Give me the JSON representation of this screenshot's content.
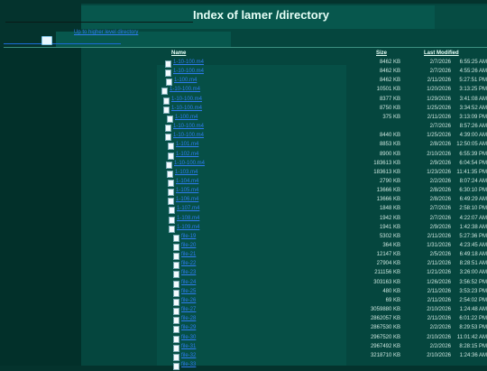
{
  "page": {
    "title": "Index of lamer /directory"
  },
  "parent": {
    "label": "Up to higher level directory"
  },
  "table": {
    "headers": {
      "name": "Name",
      "size": "Size",
      "modified": "Last Modified"
    },
    "rows": [
      {
        "name": "1-10-100.m4",
        "size": "8462 KB",
        "date": "2/7/2026",
        "time": "6:55:25 AM"
      },
      {
        "name": "1-10-100.m4",
        "size": "8462 KB",
        "date": "2/7/2026",
        "time": "4:55:26 AM"
      },
      {
        "name": "1-100.m4",
        "size": "8462 KB",
        "date": "2/11/2026",
        "time": "5:27:51 PM"
      },
      {
        "name": "1-10-100.m4",
        "size": "10501 KB",
        "date": "1/20/2026",
        "time": "3:13:25 PM"
      },
      {
        "name": "1-10-100.m4",
        "size": "8377 KB",
        "date": "1/29/2026",
        "time": "3:41:08 AM"
      },
      {
        "name": "1-10-100.m4",
        "size": "8750 KB",
        "date": "1/25/2026",
        "time": "3:34:52 AM"
      },
      {
        "name": "1-100.m4",
        "size": "375 KB",
        "date": "2/11/2026",
        "time": "3:13:09 PM"
      },
      {
        "name": "1-10-100.m4",
        "size": "",
        "date": "2/7/2026",
        "time": "8:57:26 AM"
      },
      {
        "name": "1-10-100.m4",
        "size": "8440 KB",
        "date": "1/25/2026",
        "time": "4:39:00 AM"
      },
      {
        "name": "1-101.m4",
        "size": "8853 KB",
        "date": "2/8/2026",
        "time": "12:50:05 AM"
      },
      {
        "name": "1-102.m4",
        "size": "8900 KB",
        "date": "2/10/2026",
        "time": "6:55:39 PM"
      },
      {
        "name": "1-10-100.m4",
        "size": "183613 KB",
        "date": "2/9/2026",
        "time": "6:04:54 PM"
      },
      {
        "name": "1-103.m4",
        "size": "183613 KB",
        "date": "1/23/2026",
        "time": "11:41:35 PM"
      },
      {
        "name": "1-104.m4",
        "size": "2790 KB",
        "date": "2/2/2026",
        "time": "8:07:24 AM"
      },
      {
        "name": "1-105.m4",
        "size": "13666 KB",
        "date": "2/8/2026",
        "time": "6:30:10 PM"
      },
      {
        "name": "1-106.m4",
        "size": "13666 KB",
        "date": "2/8/2026",
        "time": "6:49:29 AM"
      },
      {
        "name": "1-107.m4",
        "size": "1848 KB",
        "date": "2/7/2026",
        "time": "2:58:10 PM"
      },
      {
        "name": "1-108.m4",
        "size": "1942 KB",
        "date": "2/7/2026",
        "time": "4:22:07 AM"
      },
      {
        "name": "1-109.m4",
        "size": "1941 KB",
        "date": "2/9/2026",
        "time": "1:42:38 AM"
      },
      {
        "name": "file-19",
        "size": "5302 KB",
        "date": "2/11/2026",
        "time": "5:27:36 PM"
      },
      {
        "name": "file-20",
        "size": "364 KB",
        "date": "1/31/2026",
        "time": "4:23:45 AM"
      },
      {
        "name": "file-21",
        "size": "12147 KB",
        "date": "2/5/2026",
        "time": "6:49:18 AM"
      },
      {
        "name": "file-22",
        "size": "27904 KB",
        "date": "2/11/2026",
        "time": "8:28:51 AM"
      },
      {
        "name": "file-23",
        "size": "211156 KB",
        "date": "1/21/2026",
        "time": "3:26:00 AM"
      },
      {
        "name": "file-24",
        "size": "303163 KB",
        "date": "1/26/2026",
        "time": "3:56:52 PM"
      },
      {
        "name": "file-25",
        "size": "480 KB",
        "date": "2/11/2026",
        "time": "3:53:23 PM"
      },
      {
        "name": "file-26",
        "size": "69 KB",
        "date": "2/11/2026",
        "time": "2:54:02 PM"
      },
      {
        "name": "file-27",
        "size": "3059880 KB",
        "date": "2/10/2026",
        "time": "1:24:48 AM"
      },
      {
        "name": "file-28",
        "size": "2862057 KB",
        "date": "2/11/2026",
        "time": "6:01:22 PM"
      },
      {
        "name": "file-29",
        "size": "2867530 KB",
        "date": "2/2/2026",
        "time": "8:29:53 PM"
      },
      {
        "name": "file-30",
        "size": "2967520 KB",
        "date": "2/10/2026",
        "time": "11:01:42 AM"
      },
      {
        "name": "file-31",
        "size": "2967492 KB",
        "date": "2/2/2026",
        "time": "8:28:15 PM"
      },
      {
        "name": "file-32",
        "size": "3218710 KB",
        "date": "2/10/2026",
        "time": "1:24:36 AM"
      },
      {
        "name": "file-33",
        "size": "",
        "date": "",
        "time": ""
      }
    ]
  }
}
